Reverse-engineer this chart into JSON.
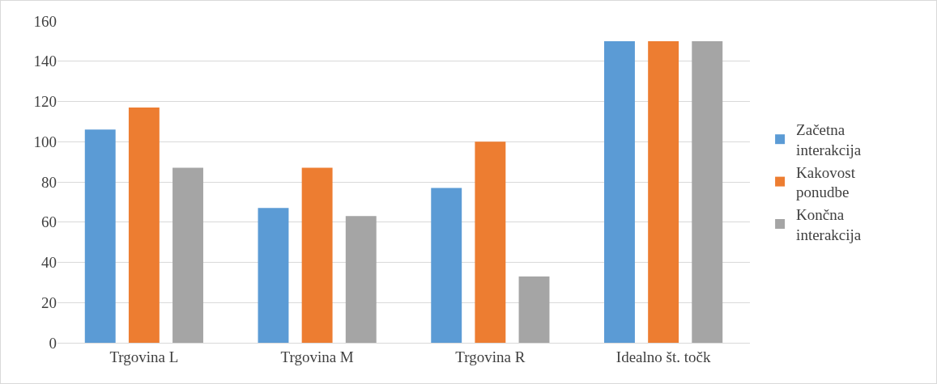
{
  "chart_data": {
    "type": "bar",
    "categories": [
      "Trgovina L",
      "Trgovina M",
      "Trgovina R",
      "Idealno št. točk"
    ],
    "series": [
      {
        "name": "Začetna interakcija",
        "color": "#5b9bd5",
        "values": [
          106,
          67,
          77,
          150
        ]
      },
      {
        "name": "Kakovost ponudbe",
        "color": "#ed7d31",
        "values": [
          117,
          87,
          100,
          150
        ]
      },
      {
        "name": "Končna interakcija",
        "color": "#a5a5a5",
        "values": [
          87,
          63,
          33,
          150
        ]
      }
    ],
    "ylim": [
      0,
      160
    ],
    "yticks": [
      0,
      20,
      40,
      60,
      80,
      100,
      120,
      140,
      160
    ],
    "grid": "y",
    "legend": "right"
  }
}
